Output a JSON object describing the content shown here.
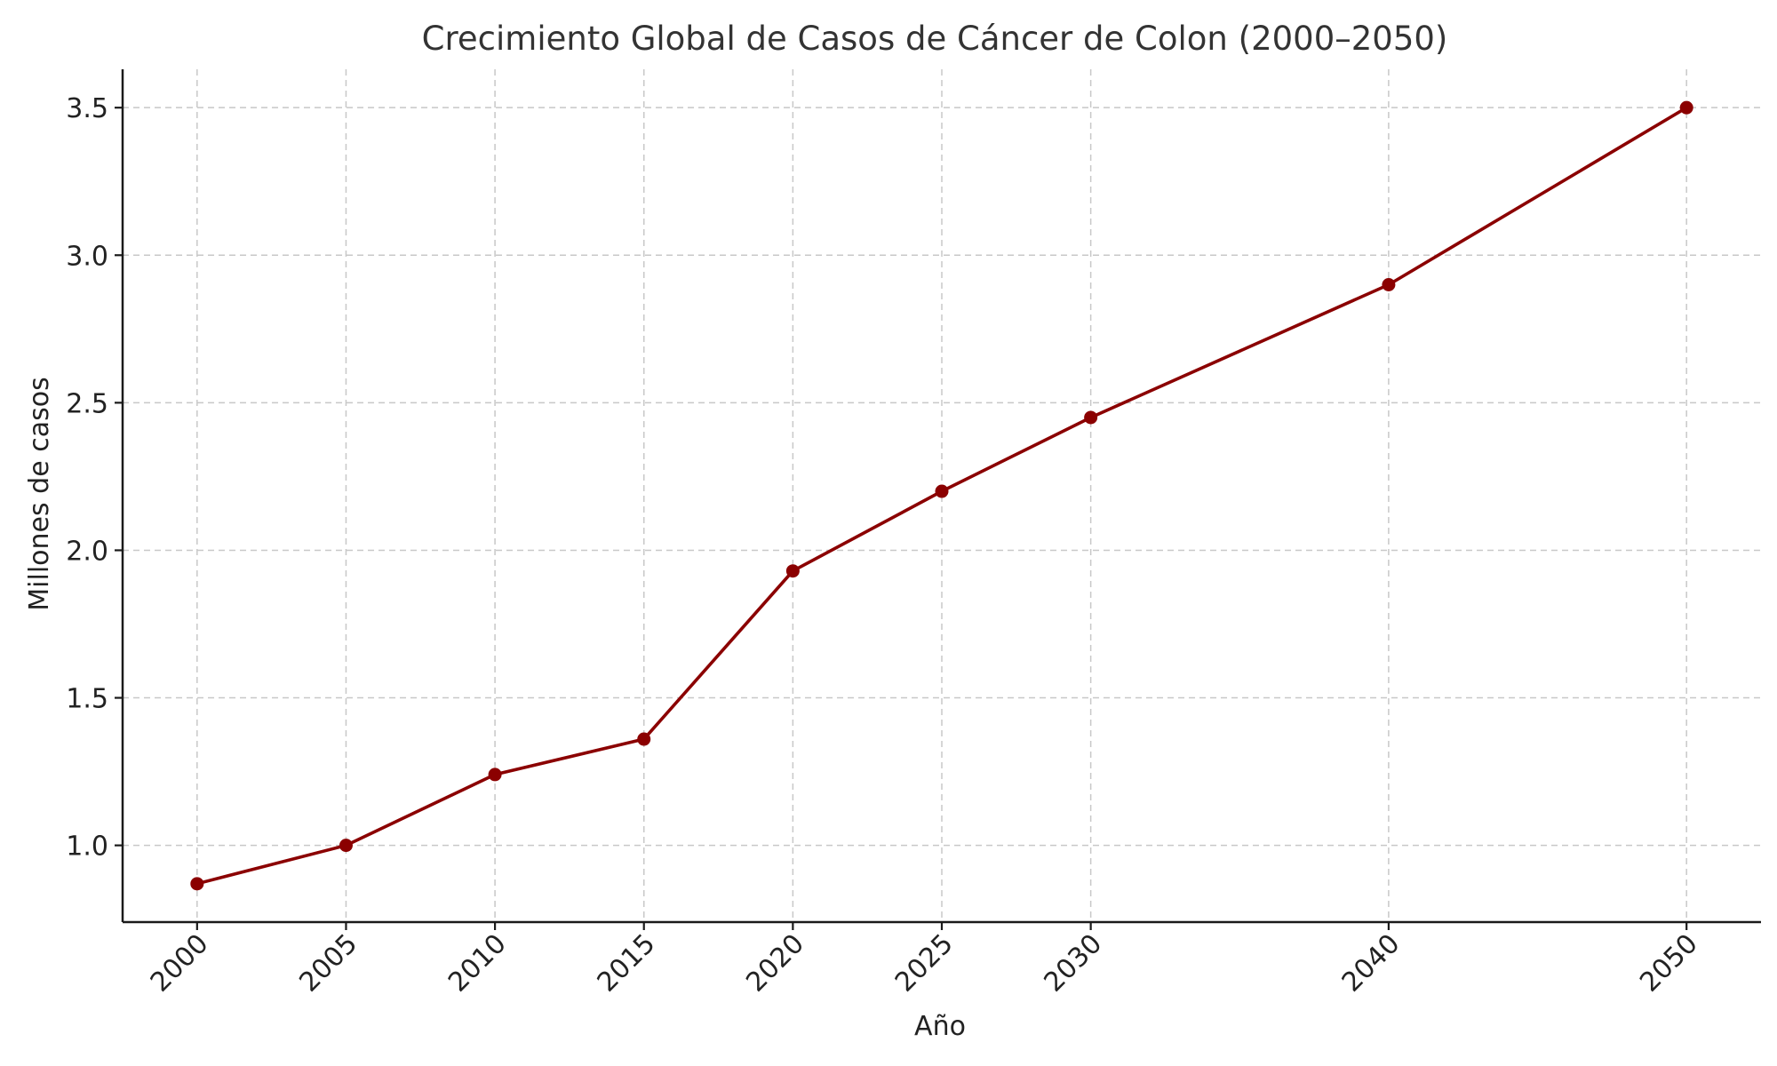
{
  "chart_data": {
    "type": "line",
    "title": "Crecimiento Global de Casos de Cáncer de Colon (2000–2050)",
    "xlabel": "Año",
    "ylabel": "Millones de casos",
    "x": [
      2000,
      2005,
      2010,
      2015,
      2020,
      2025,
      2030,
      2040,
      2050
    ],
    "x_tick_labels": [
      "2000",
      "2005",
      "2010",
      "2015",
      "2020",
      "2025",
      "2030",
      "2040",
      "2050"
    ],
    "y_ticks": [
      1.0,
      1.5,
      2.0,
      2.5,
      3.0,
      3.5
    ],
    "y_tick_labels": [
      "1.0",
      "1.5",
      "2.0",
      "2.5",
      "3.0",
      "3.5"
    ],
    "xlim": [
      1997.5,
      2052.5
    ],
    "ylim": [
      0.74,
      3.63
    ],
    "grid": true,
    "series": [
      {
        "values": [
          0.87,
          1.0,
          1.24,
          1.36,
          1.93,
          2.2,
          2.45,
          2.9,
          3.5
        ],
        "color": "#8b0000",
        "marker": "circle"
      }
    ]
  }
}
